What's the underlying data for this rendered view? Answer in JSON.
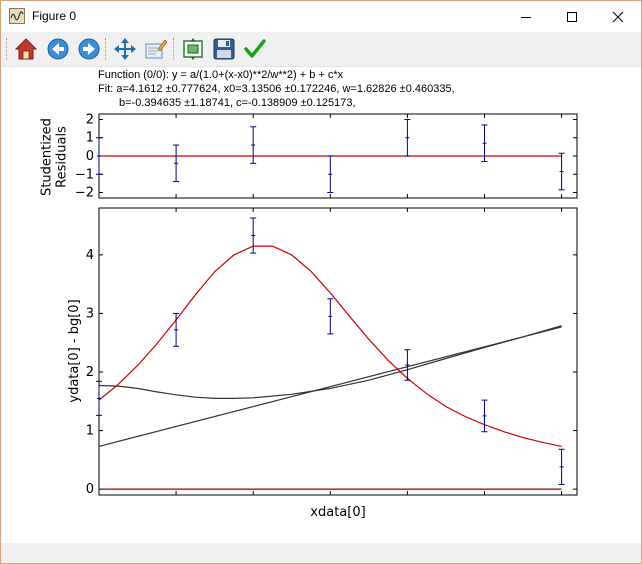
{
  "window": {
    "title": "Figure 0",
    "icons": {
      "app": "waveform-icon",
      "minimize": "minimize-icon",
      "maximize": "maximize-icon",
      "close": "close-icon"
    }
  },
  "toolbar": {
    "buttons": [
      {
        "name": "home-icon",
        "tooltip": "Home"
      },
      {
        "name": "back-arrow-icon",
        "tooltip": "Back"
      },
      {
        "name": "forward-arrow-icon",
        "tooltip": "Forward"
      },
      {
        "name": "pan-icon",
        "tooltip": "Pan"
      },
      {
        "name": "zoom-edit-icon",
        "tooltip": "Zoom"
      },
      {
        "name": "configure-subplots-icon",
        "tooltip": "Subplots"
      },
      {
        "name": "save-disk-icon",
        "tooltip": "Save"
      },
      {
        "name": "checkmark-icon",
        "tooltip": "Accept"
      }
    ]
  },
  "header": {
    "function_line": "Function (0/0): y = a/(1.0+(x-x0)**2/w**2) + b + c*x",
    "fit_line1": "Fit: a=4.1612 ±0.777624, x0=3.13506 ±0.172246, w=1.62826 ±0.460335,",
    "fit_line2": "b=-0.394635 ±1.18741, c=-0.138909 ±0.125173,"
  },
  "chart_data": [
    {
      "type": "scatter",
      "title": "",
      "xlabel": "",
      "ylabel": "Studentized\nResiduals",
      "xlim": [
        0,
        6.2
      ],
      "ylim": [
        -2.3,
        2.3
      ],
      "yticks": [
        -2,
        -1,
        0,
        1,
        2
      ],
      "grid": false,
      "colors": {
        "points": "#00008b",
        "zero_line": "#cc0000"
      },
      "series": [
        {
          "x": [
            0,
            1,
            2,
            3,
            4,
            5,
            6
          ],
          "y": [
            0.0,
            -0.4,
            0.6,
            -1.0,
            1.0,
            0.7,
            -0.85
          ],
          "err": [
            1.0,
            1.0,
            1.0,
            1.0,
            1.0,
            1.0,
            1.0
          ]
        }
      ],
      "reference_line": {
        "y": 0
      }
    },
    {
      "type": "line",
      "title": "",
      "xlabel": "xdata[0]",
      "ylabel": "ydata[0] - bg[0]",
      "xlim": [
        0,
        6.2
      ],
      "ylim": [
        -0.1,
        4.8
      ],
      "yticks": [
        0,
        1,
        2,
        3,
        4
      ],
      "grid": false,
      "colors": {
        "data": "#00008b",
        "fit": "#cc0000",
        "components": "#333333",
        "baseline": "#990000"
      },
      "series": [
        {
          "kind": "errorbar",
          "x": [
            0,
            1,
            2,
            3,
            4,
            5,
            6
          ],
          "y": [
            1.55,
            2.72,
            4.33,
            2.95,
            2.12,
            1.25,
            0.38
          ],
          "err": [
            0.29,
            0.28,
            0.3,
            0.3,
            0.26,
            0.27,
            0.3
          ]
        },
        {
          "kind": "fit",
          "x": [
            0,
            0.25,
            0.5,
            0.75,
            1,
            1.25,
            1.5,
            1.75,
            2,
            2.25,
            2.5,
            2.75,
            3,
            3.25,
            3.5,
            3.75,
            4,
            4.25,
            4.5,
            4.75,
            5,
            5.25,
            5.5,
            5.75,
            6
          ],
          "y": [
            1.52,
            1.79,
            2.11,
            2.48,
            2.89,
            3.32,
            3.71,
            4.0,
            4.15,
            4.15,
            4.0,
            3.72,
            3.35,
            2.95,
            2.56,
            2.2,
            1.89,
            1.63,
            1.41,
            1.24,
            1.1,
            0.98,
            0.88,
            0.8,
            0.73
          ]
        },
        {
          "kind": "component",
          "x": [
            0,
            6
          ],
          "y": [
            0.73,
            2.77
          ]
        },
        {
          "kind": "component",
          "x": [
            0,
            0.25,
            0.5,
            0.75,
            1,
            1.25,
            1.5,
            1.75,
            2,
            2.5,
            3,
            3.5,
            4,
            4.5,
            5,
            5.5,
            6
          ],
          "y": [
            1.77,
            1.76,
            1.72,
            1.66,
            1.61,
            1.57,
            1.55,
            1.55,
            1.56,
            1.62,
            1.72,
            1.86,
            2.04,
            2.23,
            2.42,
            2.6,
            2.79
          ]
        },
        {
          "kind": "baseline",
          "x": [
            0,
            6
          ],
          "y": [
            0.0,
            0.0
          ]
        }
      ]
    }
  ]
}
